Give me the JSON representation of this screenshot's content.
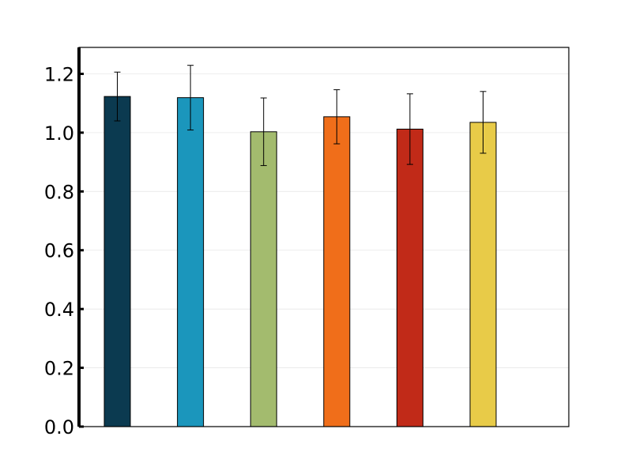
{
  "chart_data": {
    "type": "bar",
    "title": "",
    "xlabel": "",
    "ylabel": "",
    "ylim": [
      0,
      1.29
    ],
    "yticks": [
      "0.0",
      "0.2",
      "0.4",
      "0.6",
      "0.8",
      "1.0",
      "1.2"
    ],
    "grid": true,
    "values": [
      1.123,
      1.119,
      1.003,
      1.054,
      1.012,
      1.035
    ],
    "errors": [
      0.083,
      0.11,
      0.115,
      0.092,
      0.12,
      0.105
    ],
    "colors": [
      "#0b3a50",
      "#1b96bc",
      "#a3bb6e",
      "#f06e1a",
      "#c12a18",
      "#e8cb48"
    ]
  }
}
